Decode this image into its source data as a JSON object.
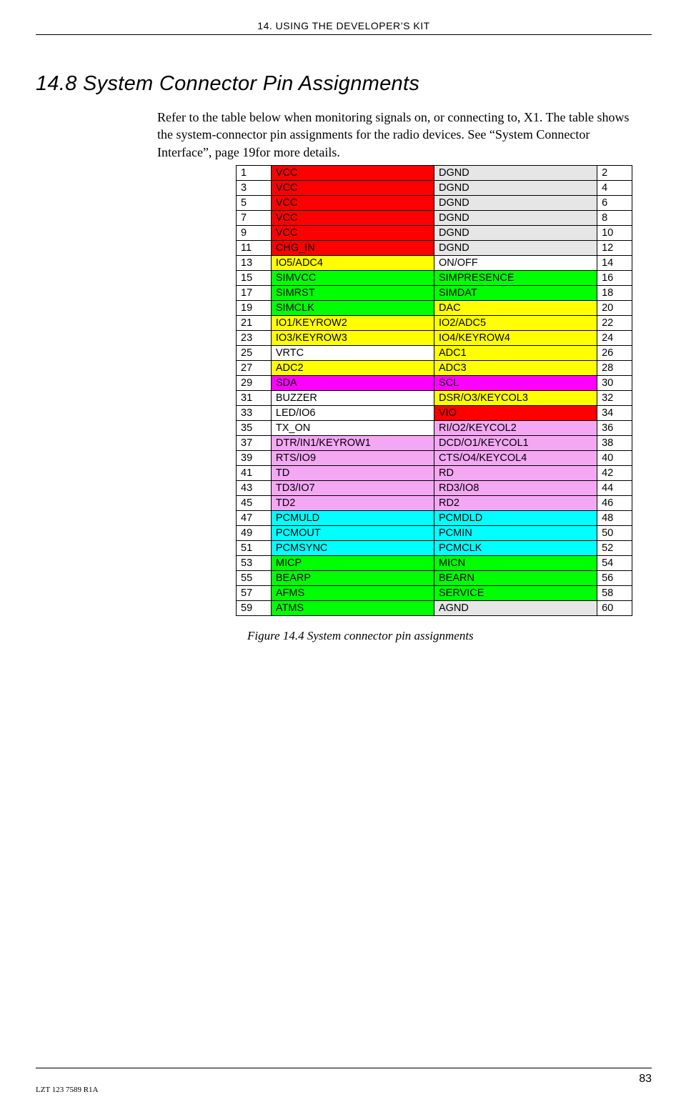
{
  "header": {
    "running": "14. USING THE DEVELOPER’S KIT"
  },
  "section": {
    "number": "14.8",
    "title": "System Connector Pin Assignments"
  },
  "body": {
    "para": "Refer to the table below when monitoring signals on, or connecting to, X1. The table shows the system-connector pin assignments for the radio devices. See “System Connector Interface”, page 19for more details."
  },
  "colors": {
    "red": "#ff0000",
    "grey": "#e6e6e6",
    "yellow": "#ffff00",
    "green": "#00ff00",
    "white": "#ffffff",
    "magenta": "#ff00ff",
    "pink": "#f4a8f4",
    "cyan": "#00ffff"
  },
  "table": {
    "rows": [
      {
        "l_pin": "1",
        "l_sig": "VCC",
        "l_color": "red",
        "r_sig": "DGND",
        "r_color": "grey",
        "r_pin": "2"
      },
      {
        "l_pin": "3",
        "l_sig": "VCC",
        "l_color": "red",
        "r_sig": "DGND",
        "r_color": "grey",
        "r_pin": "4"
      },
      {
        "l_pin": "5",
        "l_sig": "VCC",
        "l_color": "red",
        "r_sig": "DGND",
        "r_color": "grey",
        "r_pin": "6"
      },
      {
        "l_pin": "7",
        "l_sig": "VCC",
        "l_color": "red",
        "r_sig": "DGND",
        "r_color": "grey",
        "r_pin": "8"
      },
      {
        "l_pin": "9",
        "l_sig": "VCC",
        "l_color": "red",
        "r_sig": "DGND",
        "r_color": "grey",
        "r_pin": "10"
      },
      {
        "l_pin": "11",
        "l_sig": "CHG_IN",
        "l_color": "red",
        "r_sig": "DGND",
        "r_color": "grey",
        "r_pin": "12"
      },
      {
        "l_pin": "13",
        "l_sig": "IO5/ADC4",
        "l_color": "yellow",
        "r_sig": "ON/OFF",
        "r_color": "white",
        "r_pin": "14"
      },
      {
        "l_pin": "15",
        "l_sig": "SIMVCC",
        "l_color": "green",
        "r_sig": "SIMPRESENCE",
        "r_color": "green",
        "r_pin": "16"
      },
      {
        "l_pin": "17",
        "l_sig": "SIMRST",
        "l_color": "green",
        "r_sig": "SIMDAT",
        "r_color": "green",
        "r_pin": "18"
      },
      {
        "l_pin": "19",
        "l_sig": "SIMCLK",
        "l_color": "green",
        "r_sig": "DAC",
        "r_color": "yellow",
        "r_pin": "20"
      },
      {
        "l_pin": "21",
        "l_sig": "IO1/KEYROW2",
        "l_color": "yellow",
        "r_sig": "IO2/ADC5",
        "r_color": "yellow",
        "r_pin": "22"
      },
      {
        "l_pin": "23",
        "l_sig": "IO3/KEYROW3",
        "l_color": "yellow",
        "r_sig": "IO4/KEYROW4",
        "r_color": "yellow",
        "r_pin": "24"
      },
      {
        "l_pin": "25",
        "l_sig": "VRTC",
        "l_color": "white",
        "r_sig": "ADC1",
        "r_color": "yellow",
        "r_pin": "26"
      },
      {
        "l_pin": "27",
        "l_sig": "ADC2",
        "l_color": "yellow",
        "r_sig": "ADC3",
        "r_color": "yellow",
        "r_pin": "28"
      },
      {
        "l_pin": "29",
        "l_sig": "SDA",
        "l_color": "magenta",
        "r_sig": "SCL",
        "r_color": "magenta",
        "r_pin": "30"
      },
      {
        "l_pin": "31",
        "l_sig": "BUZZER",
        "l_color": "white",
        "r_sig": "DSR/O3/KEYCOL3",
        "r_color": "yellow",
        "r_pin": "32"
      },
      {
        "l_pin": "33",
        "l_sig": "LED/IO6",
        "l_color": "white",
        "r_sig": "VIO",
        "r_color": "red",
        "r_pin": "34"
      },
      {
        "l_pin": "35",
        "l_sig": "TX_ON",
        "l_color": "white",
        "r_sig": "RI/O2/KEYCOL2",
        "r_color": "pink",
        "r_pin": "36"
      },
      {
        "l_pin": "37",
        "l_sig": "DTR/IN1/KEYROW1",
        "l_color": "pink",
        "r_sig": "DCD/O1/KEYCOL1",
        "r_color": "pink",
        "r_pin": "38"
      },
      {
        "l_pin": "39",
        "l_sig": "RTS/IO9",
        "l_color": "pink",
        "r_sig": "CTS/O4/KEYCOL4",
        "r_color": "pink",
        "r_pin": "40"
      },
      {
        "l_pin": "41",
        "l_sig": "TD",
        "l_color": "pink",
        "r_sig": "RD",
        "r_color": "pink",
        "r_pin": "42"
      },
      {
        "l_pin": "43",
        "l_sig": "TD3/IO7",
        "l_color": "pink",
        "r_sig": "RD3/IO8",
        "r_color": "pink",
        "r_pin": "44"
      },
      {
        "l_pin": "45",
        "l_sig": "TD2",
        "l_color": "pink",
        "r_sig": "RD2",
        "r_color": "pink",
        "r_pin": "46"
      },
      {
        "l_pin": "47",
        "l_sig": "PCMULD",
        "l_color": "cyan",
        "r_sig": "PCMDLD",
        "r_color": "cyan",
        "r_pin": "48"
      },
      {
        "l_pin": "49",
        "l_sig": "PCMOUT",
        "l_color": "cyan",
        "r_sig": "PCMIN",
        "r_color": "cyan",
        "r_pin": "50"
      },
      {
        "l_pin": "51",
        "l_sig": "PCMSYNC",
        "l_color": "cyan",
        "r_sig": "PCMCLK",
        "r_color": "cyan",
        "r_pin": "52"
      },
      {
        "l_pin": "53",
        "l_sig": "MICP",
        "l_color": "green",
        "r_sig": "MICN",
        "r_color": "green",
        "r_pin": "54"
      },
      {
        "l_pin": "55",
        "l_sig": "BEARP",
        "l_color": "green",
        "r_sig": "BEARN",
        "r_color": "green",
        "r_pin": "56"
      },
      {
        "l_pin": "57",
        "l_sig": "AFMS",
        "l_color": "green",
        "r_sig": "SERVICE",
        "r_color": "green",
        "r_pin": "58"
      },
      {
        "l_pin": "59",
        "l_sig": "ATMS",
        "l_color": "green",
        "r_sig": "AGND",
        "r_color": "grey",
        "r_pin": "60"
      }
    ]
  },
  "caption": "Figure 14.4  System connector pin assignments",
  "footer": {
    "doc_id": "LZT 123 7589 R1A",
    "page": "83"
  }
}
